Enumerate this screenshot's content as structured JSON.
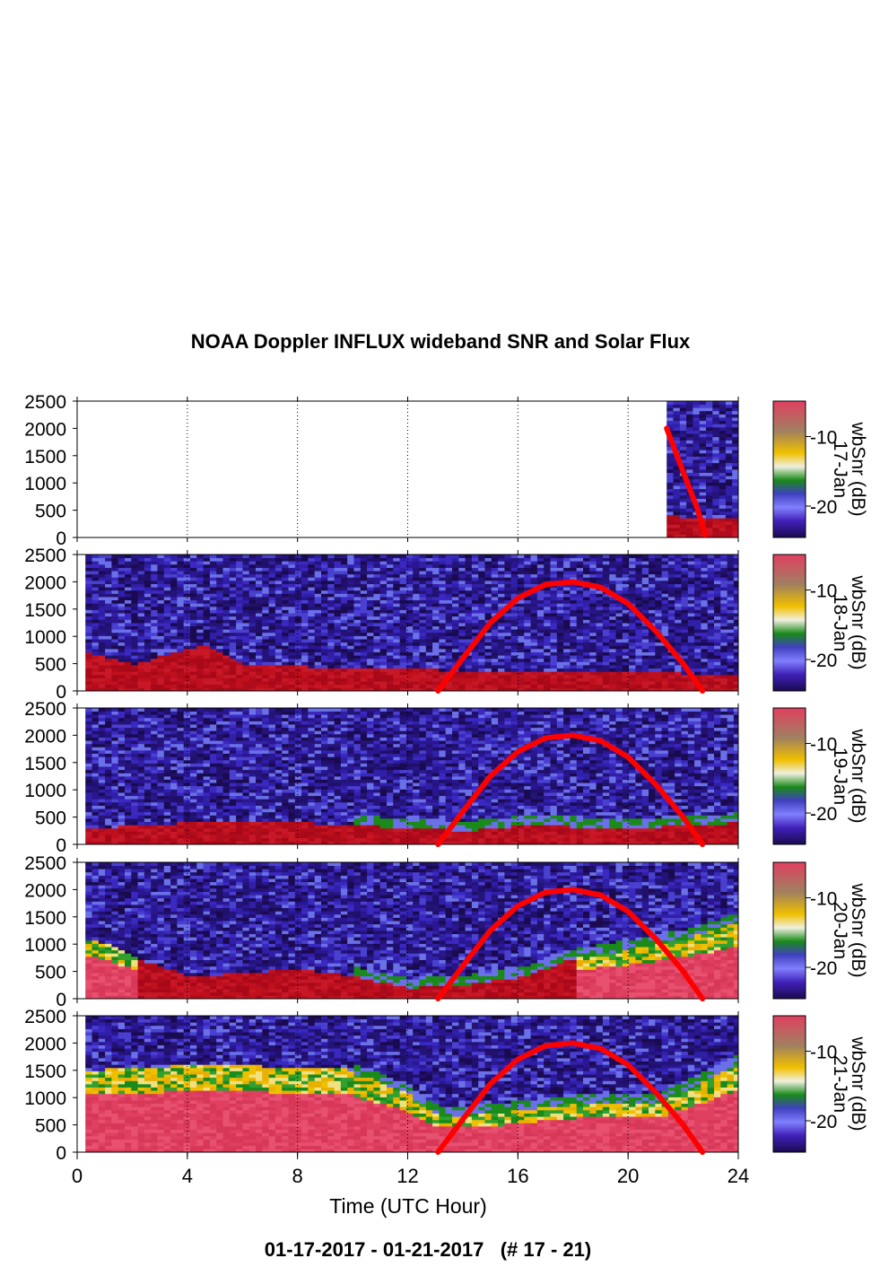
{
  "chart_data": {
    "type": "heatmap",
    "title": "NOAA Doppler INFLUX wideband SNR and Solar Flux",
    "footer": "01-17-2017 - 01-21-2017   (# 17 - 21)",
    "xlabel": "Time (UTC Hour)",
    "xlim": [
      0,
      24
    ],
    "xticks": [
      0,
      4,
      8,
      12,
      16,
      20,
      24
    ],
    "ylim": [
      0,
      2500
    ],
    "yticks": [
      0,
      500,
      1000,
      1500,
      2000,
      2500
    ],
    "grid": "vertical dotted lines at x ticks",
    "colorbar": {
      "label": "wbSnr (dB)",
      "ticks": [
        -10,
        -20
      ],
      "colors": [
        "#1a0a50",
        "#4020b8",
        "#8080ff",
        "#1a8a1a",
        "#f0f0e0",
        "#f0c000",
        "#a08060",
        "#e04060"
      ]
    },
    "solar_flux_line": {
      "color": "#ff0000"
    },
    "panels": [
      {
        "date": "17-Jan",
        "data_start_hour": 21.4,
        "boundary_layer_top": [
          [
            21.4,
            400
          ],
          [
            22,
            380
          ],
          [
            23,
            350
          ],
          [
            24,
            380
          ]
        ],
        "solar_flux": [
          [
            21.4,
            2000
          ],
          [
            22.0,
            1200
          ],
          [
            22.5,
            550
          ],
          [
            22.8,
            50
          ]
        ]
      },
      {
        "date": "18-Jan",
        "data_start_hour": 0.3,
        "boundary_layer_top": [
          [
            0.3,
            700
          ],
          [
            2,
            500
          ],
          [
            4.5,
            850
          ],
          [
            6,
            450
          ],
          [
            8,
            450
          ],
          [
            12,
            400
          ],
          [
            16,
            350
          ],
          [
            20,
            350
          ],
          [
            24,
            300
          ]
        ],
        "solar_flux": [
          [
            13.1,
            0
          ],
          [
            14,
            600
          ],
          [
            15,
            1250
          ],
          [
            16,
            1700
          ],
          [
            17,
            1950
          ],
          [
            18,
            2000
          ],
          [
            19,
            1900
          ],
          [
            20,
            1600
          ],
          [
            21,
            1100
          ],
          [
            22,
            500
          ],
          [
            22.7,
            0
          ]
        ]
      },
      {
        "date": "19-Jan",
        "data_start_hour": 0.3,
        "boundary_layer_top": [
          [
            0.3,
            300
          ],
          [
            4,
            400
          ],
          [
            8,
            400
          ],
          [
            12,
            300
          ],
          [
            14,
            250
          ],
          [
            16,
            350
          ],
          [
            20,
            300
          ],
          [
            24,
            400
          ]
        ],
        "solar_flux": [
          [
            13.1,
            0
          ],
          [
            14,
            600
          ],
          [
            15,
            1250
          ],
          [
            16,
            1700
          ],
          [
            17,
            1950
          ],
          [
            18,
            2000
          ],
          [
            19,
            1900
          ],
          [
            20,
            1600
          ],
          [
            21,
            1100
          ],
          [
            22,
            500
          ],
          [
            22.7,
            0
          ]
        ]
      },
      {
        "date": "20-Jan",
        "data_start_hour": 0.3,
        "boundary_layer_top": [
          [
            0.3,
            1100
          ],
          [
            1,
            1000
          ],
          [
            2,
            750
          ],
          [
            4,
            400
          ],
          [
            8,
            550
          ],
          [
            10,
            400
          ],
          [
            12,
            200
          ],
          [
            14,
            250
          ],
          [
            16,
            400
          ],
          [
            18,
            750
          ],
          [
            20,
            900
          ],
          [
            22,
            1100
          ],
          [
            24,
            1400
          ]
        ],
        "solar_flux": [
          [
            13.1,
            0
          ],
          [
            14,
            600
          ],
          [
            15,
            1250
          ],
          [
            16,
            1700
          ],
          [
            17,
            1950
          ],
          [
            18,
            2000
          ],
          [
            19,
            1900
          ],
          [
            20,
            1600
          ],
          [
            21,
            1100
          ],
          [
            22,
            500
          ],
          [
            22.7,
            0
          ]
        ]
      },
      {
        "date": "21-Jan",
        "data_start_hour": 0.3,
        "boundary_layer_top": [
          [
            0.3,
            1500
          ],
          [
            4,
            1600
          ],
          [
            9.5,
            1550
          ],
          [
            12,
            1050
          ],
          [
            13,
            650
          ],
          [
            15,
            700
          ],
          [
            18,
            900
          ],
          [
            21,
            900
          ],
          [
            24,
            1650
          ]
        ],
        "solar_flux": [
          [
            13.1,
            0
          ],
          [
            14,
            600
          ],
          [
            15,
            1250
          ],
          [
            16,
            1700
          ],
          [
            17,
            1950
          ],
          [
            18,
            2000
          ],
          [
            19,
            1900
          ],
          [
            20,
            1600
          ],
          [
            21,
            1100
          ],
          [
            22,
            500
          ],
          [
            22.7,
            0
          ]
        ]
      }
    ]
  }
}
